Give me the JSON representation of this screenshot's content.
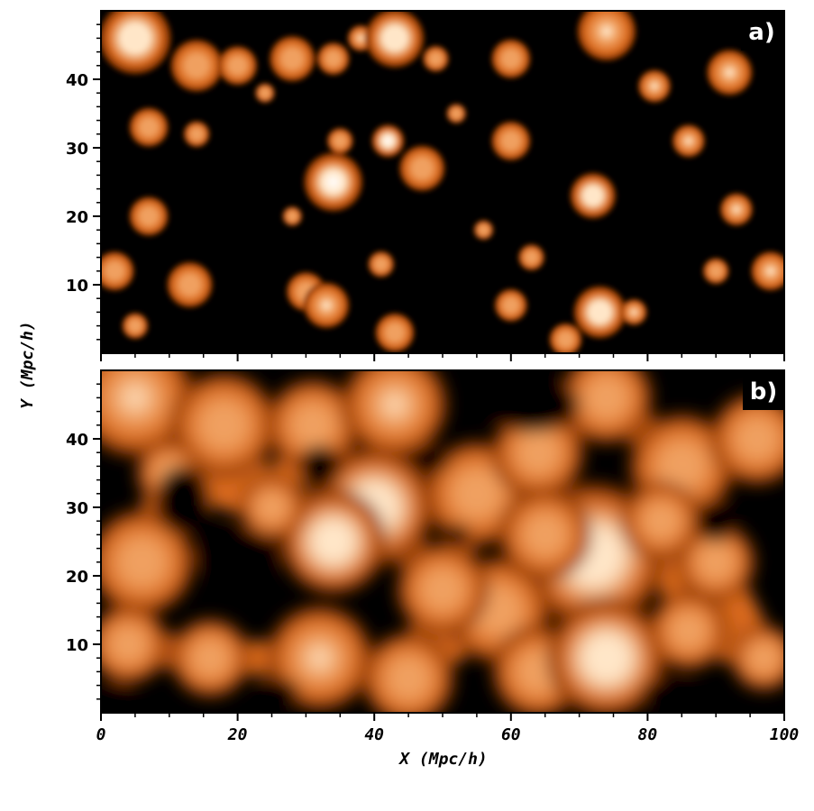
{
  "chart_data": [
    {
      "type": "heatmap",
      "panel_label": "a)",
      "description_visual": "thresholded density field: isolated bright blobs on black",
      "xlim": [
        0,
        100
      ],
      "ylim": [
        0,
        50
      ],
      "yticks": [
        "10",
        "20",
        "30",
        "40"
      ],
      "colormap": [
        "#000000",
        "#7a2e00",
        "#d9691c",
        "#f0a060",
        "#ffe6c8",
        "#ffffff"
      ]
    },
    {
      "type": "heatmap",
      "panel_label": "b)",
      "description_visual": "smoothed density field: connected filamentary web on black",
      "xlim": [
        0,
        100
      ],
      "ylim": [
        0,
        50
      ],
      "xticks": [
        "0",
        "20",
        "40",
        "60",
        "80",
        "100"
      ],
      "yticks": [
        "10",
        "20",
        "30",
        "40"
      ],
      "xlabel": "X (Mpc/h)",
      "ylabel": "Y (Mpc/h)",
      "colormap": [
        "#000000",
        "#7a2e00",
        "#d9691c",
        "#f0a060",
        "#ffe6c8",
        "#ffffff"
      ]
    }
  ],
  "blobs_a": [
    [
      5,
      46,
      5.5,
      0.9
    ],
    [
      14,
      42,
      4,
      0.8
    ],
    [
      20,
      42,
      3,
      0.75
    ],
    [
      28,
      43,
      3.5,
      0.75
    ],
    [
      34,
      43,
      2.5,
      0.8
    ],
    [
      38,
      46,
      2,
      0.85
    ],
    [
      43,
      46,
      4.5,
      0.9
    ],
    [
      49,
      43,
      2,
      0.8
    ],
    [
      60,
      43,
      3,
      0.8
    ],
    [
      74,
      47,
      4.5,
      0.85
    ],
    [
      81,
      39,
      2.5,
      0.85
    ],
    [
      92,
      41,
      3.5,
      0.85
    ],
    [
      7,
      33,
      3,
      0.8
    ],
    [
      14,
      32,
      2,
      0.75
    ],
    [
      24,
      38,
      1.5,
      0.7
    ],
    [
      35,
      31,
      2,
      0.8
    ],
    [
      42,
      31,
      2.5,
      0.95
    ],
    [
      47,
      27,
      3.5,
      0.8
    ],
    [
      34,
      25,
      4.5,
      0.95
    ],
    [
      60,
      31,
      3,
      0.8
    ],
    [
      72,
      23,
      3.5,
      0.9
    ],
    [
      86,
      31,
      2.5,
      0.85
    ],
    [
      93,
      21,
      2.5,
      0.85
    ],
    [
      7,
      20,
      3,
      0.8
    ],
    [
      2,
      12,
      3,
      0.75
    ],
    [
      13,
      10,
      3.5,
      0.75
    ],
    [
      30,
      9,
      3,
      0.7
    ],
    [
      33,
      7,
      3.5,
      0.85
    ],
    [
      41,
      13,
      2,
      0.8
    ],
    [
      43,
      3,
      3,
      0.75
    ],
    [
      60,
      7,
      2.5,
      0.75
    ],
    [
      63,
      14,
      2,
      0.7
    ],
    [
      73,
      6,
      4,
      0.9
    ],
    [
      78,
      6,
      2,
      0.85
    ],
    [
      90,
      12,
      2,
      0.7
    ],
    [
      98,
      12,
      3,
      0.85
    ],
    [
      5,
      4,
      2,
      0.75
    ],
    [
      68,
      2,
      2.5,
      0.6
    ],
    [
      52,
      35,
      1.5,
      0.7
    ],
    [
      28,
      20,
      1.5,
      0.65
    ],
    [
      56,
      18,
      1.5,
      0.7
    ]
  ],
  "blobs_b": [
    [
      5,
      46,
      9,
      0.85
    ],
    [
      18,
      42,
      8,
      0.75
    ],
    [
      31,
      42,
      7,
      0.8
    ],
    [
      43,
      45,
      8,
      0.85
    ],
    [
      40,
      30,
      9,
      0.9
    ],
    [
      34,
      25,
      8,
      0.9
    ],
    [
      55,
      32,
      8,
      0.75
    ],
    [
      64,
      38,
      7,
      0.7
    ],
    [
      72,
      23,
      11,
      0.9
    ],
    [
      74,
      46,
      7,
      0.8
    ],
    [
      85,
      36,
      8,
      0.8
    ],
    [
      96,
      40,
      7,
      0.75
    ],
    [
      6,
      22,
      8,
      0.75
    ],
    [
      4,
      10,
      6,
      0.7
    ],
    [
      16,
      8,
      6,
      0.65
    ],
    [
      32,
      8,
      8,
      0.85
    ],
    [
      45,
      5,
      7,
      0.8
    ],
    [
      58,
      15,
      8,
      0.8
    ],
    [
      64,
      6,
      7,
      0.75
    ],
    [
      74,
      8,
      9,
      0.9
    ],
    [
      86,
      12,
      6,
      0.7
    ],
    [
      97,
      8,
      5,
      0.7
    ],
    [
      90,
      22,
      6,
      0.75
    ],
    [
      10,
      35,
      5,
      0.7
    ],
    [
      25,
      30,
      5,
      0.65
    ],
    [
      50,
      18,
      7,
      0.75
    ],
    [
      65,
      26,
      7,
      0.8
    ],
    [
      82,
      28,
      6,
      0.7
    ]
  ],
  "voids_b": [
    [
      12,
      31,
      4,
      5
    ],
    [
      20,
      23,
      6,
      4
    ],
    [
      63,
      45,
      7,
      4
    ],
    [
      32,
      36,
      3,
      3
    ],
    [
      90,
      28,
      3,
      3
    ],
    [
      48,
      37,
      3,
      2
    ],
    [
      83,
      3,
      4,
      2
    ],
    [
      2,
      2,
      3,
      2
    ],
    [
      26,
      3,
      3,
      2
    ],
    [
      52,
      26,
      2,
      1.5
    ]
  ]
}
